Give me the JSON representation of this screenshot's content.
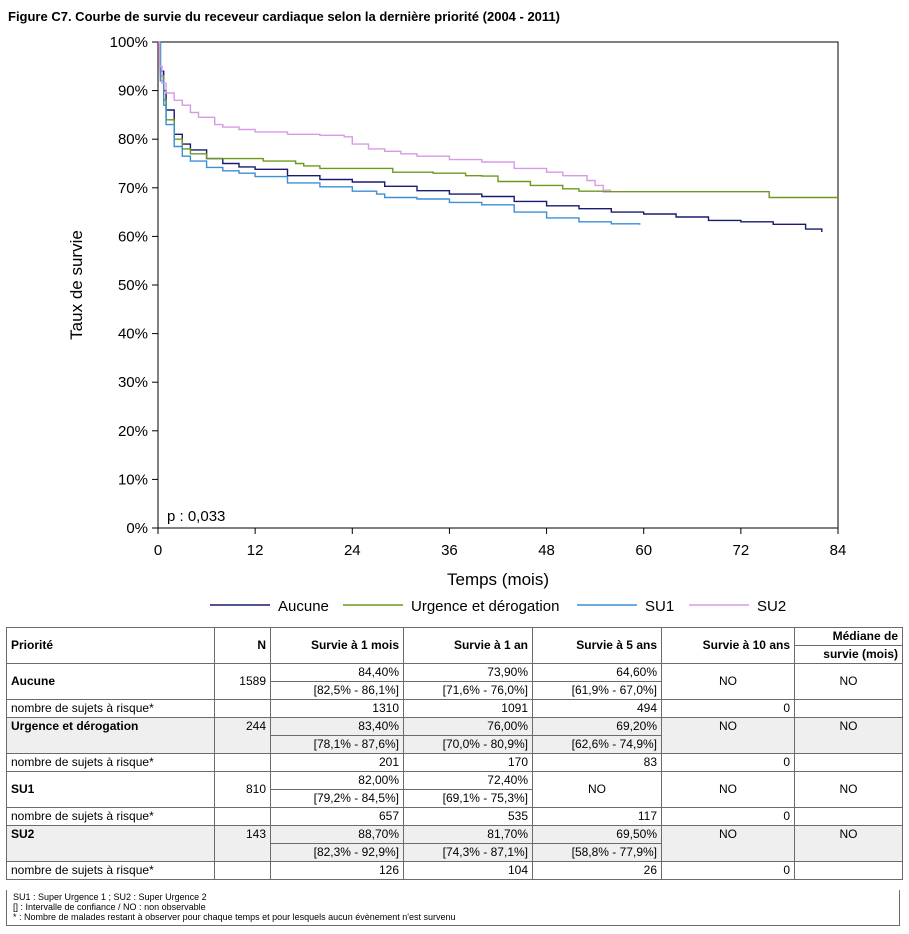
{
  "figure_title": "Figure C7. Courbe de survie du receveur cardiaque selon la dernière priorité (2004 - 2011)",
  "chart_data": {
    "type": "line",
    "title": "Figure C7. Courbe de survie du receveur cardiaque selon la dernière priorité (2004 - 2011)",
    "xlabel": "Temps (mois)",
    "ylabel": "Taux de survie",
    "xlim": [
      0,
      84
    ],
    "ylim": [
      0,
      100
    ],
    "x_ticks": [
      "0",
      "12",
      "24",
      "36",
      "48",
      "60",
      "72",
      "84"
    ],
    "y_ticks": [
      "0%",
      "10%",
      "20%",
      "30%",
      "40%",
      "50%",
      "60%",
      "70%",
      "80%",
      "90%",
      "100%"
    ],
    "annotation": "p : 0,033",
    "legend_position": "bottom",
    "series": [
      {
        "name": "Aucune",
        "color": "#1a1a6e",
        "points": [
          [
            0,
            100
          ],
          [
            0.3,
            94
          ],
          [
            0.7,
            90
          ],
          [
            1,
            86
          ],
          [
            2,
            81
          ],
          [
            3,
            79
          ],
          [
            4,
            77.8
          ],
          [
            6,
            76
          ],
          [
            8,
            75
          ],
          [
            10,
            74.3
          ],
          [
            12,
            73.8
          ],
          [
            16,
            72.5
          ],
          [
            20,
            71.7
          ],
          [
            24,
            71.2
          ],
          [
            28,
            70.3
          ],
          [
            32,
            69.4
          ],
          [
            36,
            68.7
          ],
          [
            40,
            68.2
          ],
          [
            44,
            67.2
          ],
          [
            48,
            66.3
          ],
          [
            52,
            65.7
          ],
          [
            56,
            65
          ],
          [
            60,
            64.6
          ],
          [
            64,
            64
          ],
          [
            68,
            63.3
          ],
          [
            72,
            63
          ],
          [
            76,
            62.5
          ],
          [
            80,
            61.5
          ],
          [
            82,
            60.9
          ]
        ]
      },
      {
        "name": "Urgence et dérogation",
        "color": "#6b9a1e",
        "points": [
          [
            0,
            100
          ],
          [
            0.3,
            93
          ],
          [
            0.7,
            88
          ],
          [
            1,
            84
          ],
          [
            2,
            80
          ],
          [
            3,
            78
          ],
          [
            4,
            77
          ],
          [
            6,
            76
          ],
          [
            8,
            76
          ],
          [
            12,
            76
          ],
          [
            13,
            75.5
          ],
          [
            17,
            75
          ],
          [
            18,
            74.5
          ],
          [
            20,
            74
          ],
          [
            24,
            74
          ],
          [
            28,
            74
          ],
          [
            29,
            73.2
          ],
          [
            34,
            73
          ],
          [
            38,
            72.5
          ],
          [
            40,
            72.4
          ],
          [
            42,
            71.3
          ],
          [
            46,
            70.5
          ],
          [
            50,
            69.8
          ],
          [
            52,
            69.3
          ],
          [
            55,
            69.2
          ],
          [
            60,
            69.2
          ],
          [
            75,
            69.2
          ],
          [
            75.5,
            68
          ],
          [
            84,
            68
          ]
        ]
      },
      {
        "name": "SU1",
        "color": "#3b8fd6",
        "points": [
          [
            0,
            100
          ],
          [
            0.3,
            92
          ],
          [
            0.7,
            87
          ],
          [
            1,
            83
          ],
          [
            2,
            78.5
          ],
          [
            3,
            76.5
          ],
          [
            4,
            75.5
          ],
          [
            6,
            74.2
          ],
          [
            8,
            73.5
          ],
          [
            10,
            73
          ],
          [
            12,
            72.3
          ],
          [
            16,
            71
          ],
          [
            20,
            70.2
          ],
          [
            24,
            69.3
          ],
          [
            27,
            68.7
          ],
          [
            28,
            68
          ],
          [
            32,
            67.7
          ],
          [
            36,
            67
          ],
          [
            40,
            66.5
          ],
          [
            44,
            65
          ],
          [
            48,
            63.8
          ],
          [
            52,
            63
          ],
          [
            56,
            62.6
          ],
          [
            59.5,
            62.4
          ]
        ]
      },
      {
        "name": "SU2",
        "color": "#d79be3",
        "points": [
          [
            0,
            100
          ],
          [
            0.2,
            95
          ],
          [
            0.5,
            91.5
          ],
          [
            1,
            89.5
          ],
          [
            2,
            88
          ],
          [
            3,
            87
          ],
          [
            4,
            85.5
          ],
          [
            5,
            84.5
          ],
          [
            7,
            83
          ],
          [
            8,
            82.5
          ],
          [
            10,
            82
          ],
          [
            12,
            81.5
          ],
          [
            16,
            81
          ],
          [
            20,
            80.8
          ],
          [
            23,
            80.5
          ],
          [
            24,
            79
          ],
          [
            26,
            78
          ],
          [
            28,
            77.5
          ],
          [
            30,
            77
          ],
          [
            32,
            76.5
          ],
          [
            36,
            75.8
          ],
          [
            40,
            75.3
          ],
          [
            44,
            74
          ],
          [
            48,
            73.2
          ],
          [
            50,
            72.5
          ],
          [
            53,
            71.5
          ],
          [
            54,
            70.5
          ],
          [
            55,
            69.5
          ],
          [
            56,
            69.5
          ]
        ]
      }
    ]
  },
  "table": {
    "headers": {
      "priorite": "Priorité",
      "n": "N",
      "m1": "Survie à 1 mois",
      "a1": "Survie à 1 an",
      "a5": "Survie à 5 ans",
      "a10": "Survie à 10 ans",
      "median_l1": "Médiane de",
      "median_l2": "survie (mois)"
    },
    "risk_label": "nombre de sujets à risque*",
    "groups": [
      {
        "label": "Aucune",
        "n": "1589",
        "m1": "84,40%",
        "m1_ci": "[82,5% - 86,1%]",
        "a1": "73,90%",
        "a1_ci": "[71,6% - 76,0%]",
        "a5": "64,60%",
        "a5_ci": "[61,9% - 67,0%]",
        "a10": "NO",
        "median": "NO",
        "risk": {
          "m1": "1310",
          "a1": "1091",
          "a5": "494",
          "a10": "0"
        }
      },
      {
        "label": "Urgence et dérogation",
        "n": "244",
        "m1": "83,40%",
        "m1_ci": "[78,1% - 87,6%]",
        "a1": "76,00%",
        "a1_ci": "[70,0% - 80,9%]",
        "a5": "69,20%",
        "a5_ci": "[62,6% - 74,9%]",
        "a10": "NO",
        "median": "NO",
        "risk": {
          "m1": "201",
          "a1": "170",
          "a5": "83",
          "a10": "0"
        }
      },
      {
        "label": "SU1",
        "n": "810",
        "m1": "82,00%",
        "m1_ci": "[79,2% - 84,5%]",
        "a1": "72,40%",
        "a1_ci": "[69,1% - 75,3%]",
        "a5": "NO",
        "a10": "NO",
        "median": "NO",
        "risk": {
          "m1": "657",
          "a1": "535",
          "a5": "117",
          "a10": "0"
        }
      },
      {
        "label": "SU2",
        "n": "143",
        "m1": "88,70%",
        "m1_ci": "[82,3% - 92,9%]",
        "a1": "81,70%",
        "a1_ci": "[74,3% - 87,1%]",
        "a5": "69,50%",
        "a5_ci": "[58,8% - 77,9%]",
        "a10": "NO",
        "median": "NO",
        "risk": {
          "m1": "126",
          "a1": "104",
          "a5": "26",
          "a10": "0"
        }
      }
    ]
  },
  "notes": [
    "SU1 : Super Urgence 1 ; SU2 : Super Urgence 2",
    "[] : Intervalle de confiance / NO : non observable",
    "* : Nombre de malades restant à observer pour chaque temps et pour lesquels aucun évènement n'est survenu"
  ]
}
